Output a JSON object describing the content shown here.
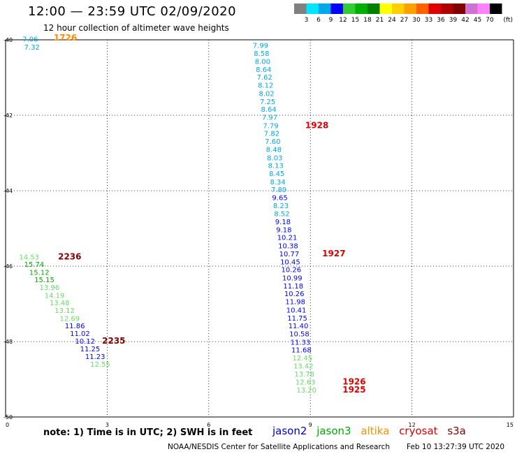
{
  "header": {
    "title": "12:00 — 23:59 UTC 02/09/2020",
    "subtitle": "12 hour collection of altimeter wave heights"
  },
  "colorbar": {
    "labels": [
      "3",
      "6",
      "9",
      "12",
      "15",
      "18",
      "21",
      "24",
      "27",
      "30",
      "33",
      "36",
      "39",
      "42",
      "45",
      "70"
    ],
    "unit": "(ft)",
    "colors": [
      "#808080",
      "#00e5ff",
      "#00a8e8",
      "#0000ff",
      "#33cc33",
      "#00b000",
      "#008000",
      "#ffff00",
      "#ffd000",
      "#ffa000",
      "#ff6000",
      "#e00000",
      "#b00000",
      "#800000",
      "#d070d0",
      "#ff80ff",
      "#000000"
    ]
  },
  "footer": {
    "note": "note:  1) Time is in UTC;  2) SWH is in feet",
    "satellites": [
      {
        "name": "jason2",
        "color": "#0000cc"
      },
      {
        "name": "jason3",
        "color": "#00aa00"
      },
      {
        "name": "altika",
        "color": "#ff8c00"
      },
      {
        "name": "cryosat",
        "color": "#dd0000"
      },
      {
        "name": "s3a",
        "color": "#880000"
      }
    ],
    "credit": "NOAA/NESDIS Center for Satellite Applications and Research",
    "timestamp": "Feb 10 13:27:39 UTC 2020"
  },
  "chart_data": {
    "type": "scatter",
    "xlim": [
      0,
      15
    ],
    "ylim": [
      -40,
      -50
    ],
    "x_ticks": [
      "0",
      "3",
      "6",
      "9",
      "12",
      "15"
    ],
    "y_ticks": [
      "-40",
      "-42",
      "-44",
      "-46",
      "-48",
      "-50"
    ],
    "grid": true,
    "labels": [
      {
        "x": 0.5,
        "y": -40.05,
        "text": "7.06",
        "color": "#00a8e8"
      },
      {
        "x": 0.55,
        "y": -40.26,
        "text": "7.32",
        "color": "#00a8e8"
      },
      {
        "x": 7.3,
        "y": -40.21,
        "text": "7.99",
        "color": "#00a8e8"
      },
      {
        "x": 7.33,
        "y": -40.43,
        "text": "8.58",
        "color": "#00a8e8"
      },
      {
        "x": 7.36,
        "y": -40.64,
        "text": "8.00",
        "color": "#00a8e8"
      },
      {
        "x": 7.39,
        "y": -40.85,
        "text": "8.64",
        "color": "#00a8e8"
      },
      {
        "x": 7.42,
        "y": -41.06,
        "text": "7.62",
        "color": "#00a8e8"
      },
      {
        "x": 7.45,
        "y": -41.27,
        "text": "8.12",
        "color": "#00a8e8"
      },
      {
        "x": 7.48,
        "y": -41.49,
        "text": "8.02",
        "color": "#00a8e8"
      },
      {
        "x": 7.51,
        "y": -41.7,
        "text": "7.25",
        "color": "#00a8e8"
      },
      {
        "x": 7.54,
        "y": -41.91,
        "text": "8.64",
        "color": "#00a8e8"
      },
      {
        "x": 7.57,
        "y": -42.12,
        "text": "7.97",
        "color": "#00a8e8"
      },
      {
        "x": 7.6,
        "y": -42.34,
        "text": "7.79",
        "color": "#00a8e8"
      },
      {
        "x": 7.63,
        "y": -42.55,
        "text": "7.82",
        "color": "#00a8e8"
      },
      {
        "x": 7.66,
        "y": -42.76,
        "text": "7.60",
        "color": "#00a8e8"
      },
      {
        "x": 7.69,
        "y": -42.97,
        "text": "8.48",
        "color": "#00a8e8"
      },
      {
        "x": 7.72,
        "y": -43.19,
        "text": "8.03",
        "color": "#00a8e8"
      },
      {
        "x": 7.75,
        "y": -43.4,
        "text": "8.13",
        "color": "#00a8e8"
      },
      {
        "x": 7.78,
        "y": -43.61,
        "text": "8.45",
        "color": "#00a8e8"
      },
      {
        "x": 7.81,
        "y": -43.83,
        "text": "8.34",
        "color": "#00a8e8"
      },
      {
        "x": 7.84,
        "y": -44.04,
        "text": "7.89",
        "color": "#00a8e8"
      },
      {
        "x": 7.87,
        "y": -44.25,
        "text": "9.65",
        "color": "#0000ff"
      },
      {
        "x": 7.9,
        "y": -44.46,
        "text": "8.23",
        "color": "#00a8e8"
      },
      {
        "x": 7.93,
        "y": -44.68,
        "text": "8.52",
        "color": "#00a8e8"
      },
      {
        "x": 7.96,
        "y": -44.89,
        "text": "9.18",
        "color": "#0000ff"
      },
      {
        "x": 7.99,
        "y": -45.1,
        "text": "9.18",
        "color": "#0000ff"
      },
      {
        "x": 8.02,
        "y": -45.31,
        "text": "10.21",
        "color": "#0000ff"
      },
      {
        "x": 8.05,
        "y": -45.53,
        "text": "10.38",
        "color": "#0000ff"
      },
      {
        "x": 8.08,
        "y": -45.74,
        "text": "10.77",
        "color": "#0000ff"
      },
      {
        "x": 8.11,
        "y": -45.95,
        "text": "10.45",
        "color": "#0000ff"
      },
      {
        "x": 8.14,
        "y": -46.16,
        "text": "10.26",
        "color": "#0000ff"
      },
      {
        "x": 8.17,
        "y": -46.38,
        "text": "10.99",
        "color": "#0000ff"
      },
      {
        "x": 8.2,
        "y": -46.59,
        "text": "11.18",
        "color": "#0000ff"
      },
      {
        "x": 8.23,
        "y": -46.8,
        "text": "10.26",
        "color": "#0000ff"
      },
      {
        "x": 8.26,
        "y": -47.01,
        "text": "11.98",
        "color": "#0000ff"
      },
      {
        "x": 8.29,
        "y": -47.23,
        "text": "10.41",
        "color": "#0000ff"
      },
      {
        "x": 8.32,
        "y": -47.44,
        "text": "11.75",
        "color": "#0000ff"
      },
      {
        "x": 8.35,
        "y": -47.65,
        "text": "11.40",
        "color": "#0000ff"
      },
      {
        "x": 8.38,
        "y": -47.86,
        "text": "10.58",
        "color": "#0000ff"
      },
      {
        "x": 8.41,
        "y": -48.08,
        "text": "11.33",
        "color": "#0000ff"
      },
      {
        "x": 8.44,
        "y": -48.29,
        "text": "11.68",
        "color": "#0000ff"
      },
      {
        "x": 8.47,
        "y": -48.5,
        "text": "12.45",
        "color": "#66dd66"
      },
      {
        "x": 8.5,
        "y": -48.71,
        "text": "13.42",
        "color": "#66dd66"
      },
      {
        "x": 8.53,
        "y": -48.93,
        "text": "13.78",
        "color": "#66dd66"
      },
      {
        "x": 8.56,
        "y": -49.14,
        "text": "12.63",
        "color": "#66dd66"
      },
      {
        "x": 8.59,
        "y": -49.35,
        "text": "13.20",
        "color": "#66dd66"
      },
      {
        "x": 0.4,
        "y": -45.82,
        "text": "14.53",
        "color": "#66dd66"
      },
      {
        "x": 0.55,
        "y": -46.02,
        "text": "15.74",
        "color": "#00aa00"
      },
      {
        "x": 0.7,
        "y": -46.23,
        "text": "15.12",
        "color": "#00aa00"
      },
      {
        "x": 0.85,
        "y": -46.43,
        "text": "15.15",
        "color": "#00aa00"
      },
      {
        "x": 1.0,
        "y": -46.63,
        "text": "13.96",
        "color": "#66dd66"
      },
      {
        "x": 1.15,
        "y": -46.84,
        "text": "14.19",
        "color": "#66dd66"
      },
      {
        "x": 1.3,
        "y": -47.04,
        "text": "13.48",
        "color": "#66dd66"
      },
      {
        "x": 1.45,
        "y": -47.24,
        "text": "13.12",
        "color": "#66dd66"
      },
      {
        "x": 1.6,
        "y": -47.45,
        "text": "12.69",
        "color": "#66dd66"
      },
      {
        "x": 1.75,
        "y": -47.65,
        "text": "11.86",
        "color": "#0000ff"
      },
      {
        "x": 1.9,
        "y": -47.85,
        "text": "11.02",
        "color": "#0000ff"
      },
      {
        "x": 2.05,
        "y": -48.06,
        "text": "10.12",
        "color": "#0000ff"
      },
      {
        "x": 2.2,
        "y": -48.26,
        "text": "11.25",
        "color": "#0000ff"
      },
      {
        "x": 2.35,
        "y": -48.46,
        "text": "11.23",
        "color": "#0000ff"
      },
      {
        "x": 2.5,
        "y": -48.67,
        "text": "12.55",
        "color": "#66dd66"
      }
    ],
    "times": [
      {
        "x": 1.42,
        "y": -40.02,
        "text": "1726",
        "color": "#ff8c00"
      },
      {
        "x": 8.85,
        "y": -42.34,
        "text": "1928",
        "color": "#dd0000"
      },
      {
        "x": 9.35,
        "y": -45.74,
        "text": "1927",
        "color": "#dd0000"
      },
      {
        "x": 1.55,
        "y": -45.82,
        "text": "2236",
        "color": "#880000"
      },
      {
        "x": 2.85,
        "y": -48.06,
        "text": "2235",
        "color": "#880000"
      },
      {
        "x": 9.95,
        "y": -49.14,
        "text": "1926",
        "color": "#dd0000"
      },
      {
        "x": 9.95,
        "y": -49.35,
        "text": "1925",
        "color": "#dd0000"
      }
    ]
  }
}
